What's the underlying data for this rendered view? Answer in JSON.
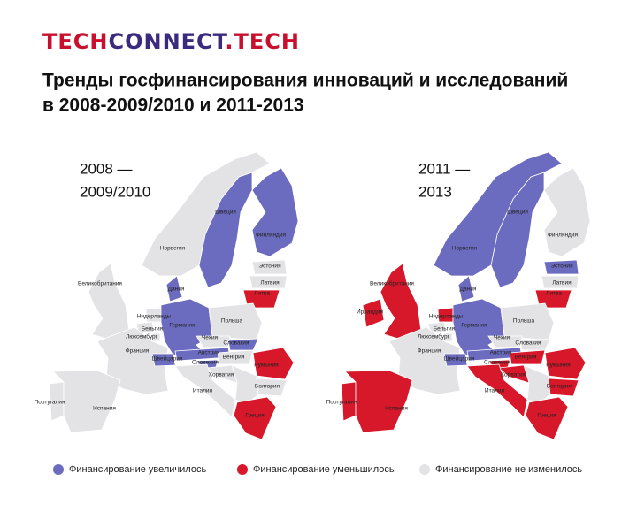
{
  "logo": [
    "TECH",
    "CONNECT",
    ".TECH"
  ],
  "title": [
    "Тренды госфинансирования инноваций и исследований",
    "в 2008-2009/2010 и 2011-2013"
  ],
  "maps": [
    {
      "period": [
        "2008 —",
        "2009/2010"
      ],
      "countries": [
        {
          "name": "Швеция",
          "color": "#6b6bbf"
        },
        {
          "name": "Финляндия",
          "color": "#6b6bbf"
        },
        {
          "name": "Норвегия",
          "color": "#e3e3e6"
        },
        {
          "name": "Эстония",
          "color": "#e3e3e6"
        },
        {
          "name": "Латвия",
          "color": "#e3e3e6"
        },
        {
          "name": "Литва",
          "color": "#d7182a"
        },
        {
          "name": "Великобритания",
          "color": "#e3e3e6"
        },
        {
          "name": "Дания",
          "color": "#6b6bbf"
        },
        {
          "name": "Нидерланды",
          "color": "#e3e3e6"
        },
        {
          "name": "Германия",
          "color": "#6b6bbf"
        },
        {
          "name": "Бельгия",
          "color": "#e3e3e6"
        },
        {
          "name": "Люксембург",
          "color": "#e3e3e6"
        },
        {
          "name": "Франция",
          "color": "#e3e3e6"
        },
        {
          "name": "Польша",
          "color": "#e3e3e6"
        },
        {
          "name": "Чехия",
          "color": "#e3e3e6"
        },
        {
          "name": "Словакия",
          "color": "#6b6bbf"
        },
        {
          "name": "Швейцария",
          "color": "#6b6bbf"
        },
        {
          "name": "Австрия",
          "color": "#6b6bbf"
        },
        {
          "name": "Словения",
          "color": "#6b6bbf"
        },
        {
          "name": "Венгрия",
          "color": "#e3e3e6"
        },
        {
          "name": "Румыния",
          "color": "#d7182a"
        },
        {
          "name": "Хорватия",
          "color": "#e3e3e6"
        },
        {
          "name": "Италия",
          "color": "#e3e3e6"
        },
        {
          "name": "Болгария",
          "color": "#e3e3e6"
        },
        {
          "name": "Португалия",
          "color": "#e3e3e6"
        },
        {
          "name": "Испания",
          "color": "#e3e3e6"
        },
        {
          "name": "Греция",
          "color": "#d7182a"
        }
      ]
    },
    {
      "period": [
        "2011 —",
        "2013"
      ],
      "countries": [
        {
          "name": "Швеция",
          "color": "#6b6bbf"
        },
        {
          "name": "Финляндия",
          "color": "#e3e3e6"
        },
        {
          "name": "Норвегия",
          "color": "#6b6bbf"
        },
        {
          "name": "Эстония",
          "color": "#6b6bbf"
        },
        {
          "name": "Латвия",
          "color": "#e3e3e6"
        },
        {
          "name": "Литва",
          "color": "#d7182a"
        },
        {
          "name": "Великобритания",
          "color": "#d7182a"
        },
        {
          "name": "Дания",
          "color": "#6b6bbf"
        },
        {
          "name": "Нидерланды",
          "color": "#d7182a"
        },
        {
          "name": "Германия",
          "color": "#6b6bbf"
        },
        {
          "name": "Бельгия",
          "color": "#e3e3e6"
        },
        {
          "name": "Люксембург",
          "color": "#e3e3e6"
        },
        {
          "name": "Франция",
          "color": "#e3e3e6"
        },
        {
          "name": "Польша",
          "color": "#e3e3e6"
        },
        {
          "name": "Чехия",
          "color": "#e3e3e6"
        },
        {
          "name": "Словакия",
          "color": "#e3e3e6"
        },
        {
          "name": "Швейцария",
          "color": "#6b6bbf"
        },
        {
          "name": "Австрия",
          "color": "#6b6bbf"
        },
        {
          "name": "Словения",
          "color": "#d7182a"
        },
        {
          "name": "Венгрия",
          "color": "#d7182a"
        },
        {
          "name": "Румыния",
          "color": "#d7182a"
        },
        {
          "name": "Хорватия",
          "color": "#d7182a"
        },
        {
          "name": "Италия",
          "color": "#d7182a"
        },
        {
          "name": "Болгария",
          "color": "#d7182a"
        },
        {
          "name": "Португалия",
          "color": "#d7182a"
        },
        {
          "name": "Испания",
          "color": "#d7182a"
        },
        {
          "name": "Греция",
          "color": "#d7182a"
        },
        {
          "name": "Ирландия",
          "color": "#d7182a"
        }
      ]
    }
  ],
  "legend": [
    {
      "label": "Финансирование увеличилось",
      "color": "#6b6bbf"
    },
    {
      "label": "Финансирование уменьшилось",
      "color": "#d7182a"
    },
    {
      "label": "Финансирование не изменилось",
      "color": "#e3e3e6"
    }
  ]
}
